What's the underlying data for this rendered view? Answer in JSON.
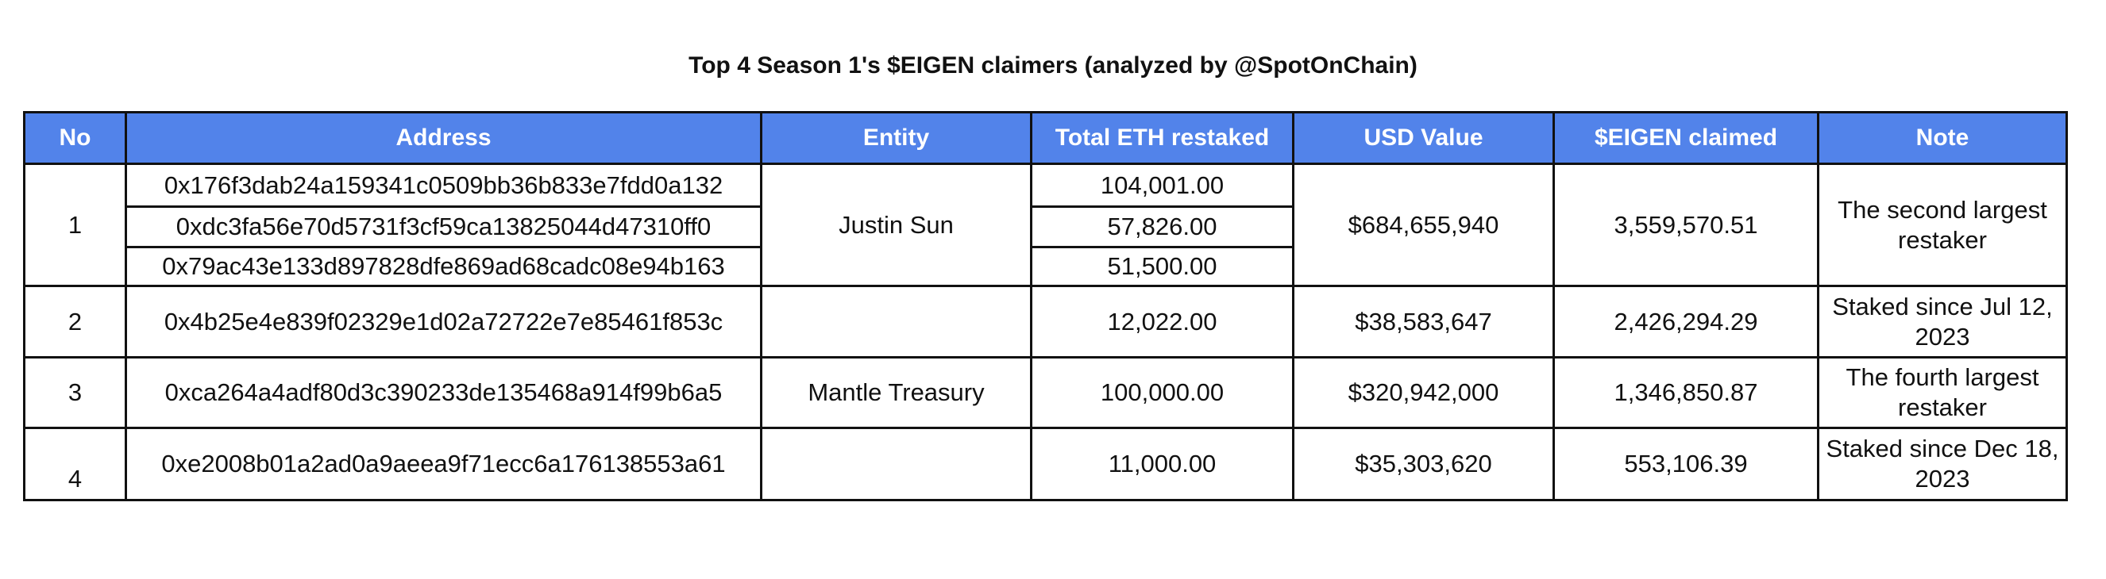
{
  "title": "Top 4 Season 1's $EIGEN claimers (analyzed by @SpotOnChain)",
  "colors": {
    "header_bg": "#5283ea",
    "header_text": "#ffffff",
    "border": "#111111"
  },
  "headers": [
    "No",
    "Address",
    "Entity",
    "Total ETH restaked",
    "USD Value",
    "$EIGEN claimed",
    "Note"
  ],
  "rows": [
    {
      "no": "1",
      "addresses": [
        "0x176f3dab24a159341c0509bb36b833e7fdd0a132",
        "0xdc3fa56e70d5731f3cf59ca13825044d47310ff0",
        "0x79ac43e133d897828dfe869ad68cadc08e94b163"
      ],
      "entity": "Justin Sun",
      "eth": [
        "104,001.00",
        "57,826.00",
        "51,500.00"
      ],
      "usd": "$684,655,940",
      "eigen": "3,559,570.51",
      "note": "The second largest restaker"
    },
    {
      "no": "2",
      "addresses": [
        "0x4b25e4e839f02329e1d02a72722e7e85461f853c"
      ],
      "entity": "",
      "eth": [
        "12,022.00"
      ],
      "usd": "$38,583,647",
      "eigen": "2,426,294.29",
      "note": "Staked since Jul 12, 2023"
    },
    {
      "no": "3",
      "addresses": [
        "0xca264a4adf80d3c390233de135468a914f99b6a5"
      ],
      "entity": "Mantle Treasury",
      "eth": [
        "100,000.00"
      ],
      "usd": "$320,942,000",
      "eigen": "1,346,850.87",
      "note": "The fourth largest restaker"
    },
    {
      "no": "4",
      "addresses": [
        "0xe2008b01a2ad0a9aeea9f71ecc6a176138553a61"
      ],
      "entity": "",
      "eth": [
        "11,000.00"
      ],
      "usd": "$35,303,620",
      "eigen": "553,106.39",
      "note": "Staked since Dec 18, 2023"
    }
  ]
}
